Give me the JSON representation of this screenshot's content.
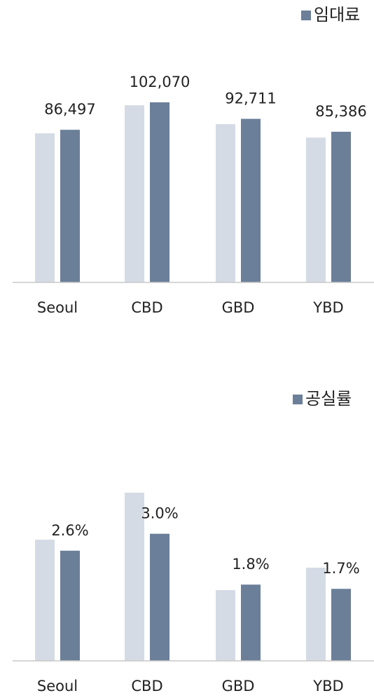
{
  "chart_data": [
    {
      "type": "bar",
      "categories": [
        "Seoul",
        "CBD",
        "GBD",
        "YBD"
      ],
      "series": [
        {
          "color": "#d5dbe5",
          "values": [
            84500,
            100400,
            89700,
            82100
          ]
        },
        {
          "name": "임대료",
          "color": "#6b7f99",
          "values": [
            86497,
            102070,
            92711,
            85386
          ],
          "value_labels": [
            "86,497",
            "102,070",
            "92,711",
            "85,386"
          ]
        }
      ]
    },
    {
      "type": "bar",
      "categories": [
        "Seoul",
        "CBD",
        "GBD",
        "YBD"
      ],
      "series": [
        {
          "color": "#d5dbe5",
          "values": [
            2.86,
            3.97,
            1.67,
            2.2
          ]
        },
        {
          "name": "공실률",
          "color": "#6b7f99",
          "values": [
            2.6,
            3.0,
            1.8,
            1.7
          ],
          "value_labels": [
            "2.6%",
            "3.0%",
            "1.8%",
            "1.7%"
          ]
        }
      ]
    }
  ]
}
